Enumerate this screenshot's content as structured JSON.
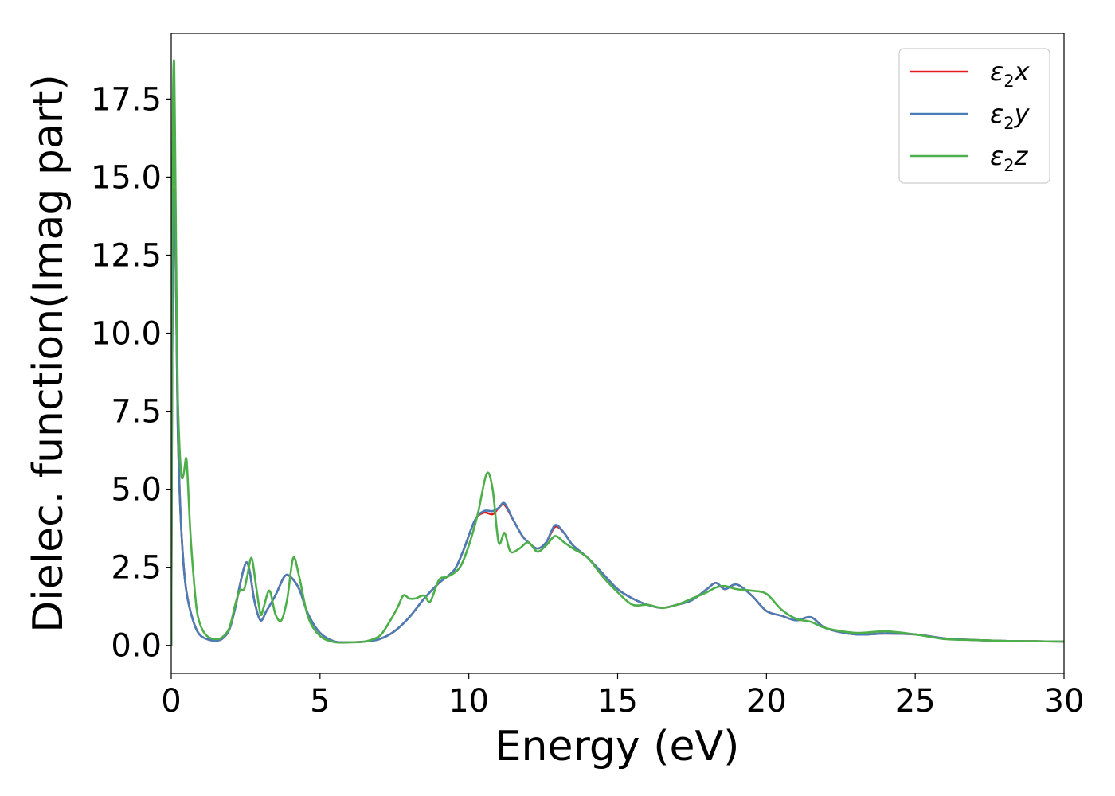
{
  "chart_data": {
    "type": "line",
    "title": "",
    "xlabel": "Energy (eV)",
    "ylabel": "Dielec. function(Imag part)",
    "xlim": [
      0,
      30
    ],
    "ylim": [
      -0.9,
      19.6
    ],
    "xticks": [
      0,
      5,
      10,
      15,
      20,
      25,
      30
    ],
    "xtick_labels": [
      "0",
      "5",
      "10",
      "15",
      "20",
      "25",
      "30"
    ],
    "yticks": [
      0.0,
      2.5,
      5.0,
      7.5,
      10.0,
      12.5,
      15.0,
      17.5
    ],
    "ytick_labels": [
      "0.0",
      "2.5",
      "5.0",
      "7.5",
      "10.0",
      "12.5",
      "15.0",
      "17.5"
    ],
    "grid": false,
    "legend_position": "top-right",
    "series": [
      {
        "name": "ε2x",
        "legend_base": "ε",
        "legend_sub": "2",
        "legend_tail": "x",
        "color": "#e41a1c",
        "x": [
          0.0,
          0.03,
          0.06,
          0.1,
          0.14,
          0.18,
          0.22,
          0.28,
          0.35,
          0.45,
          0.55,
          0.7,
          0.85,
          1.0,
          1.2,
          1.45,
          1.7,
          1.95,
          2.15,
          2.3,
          2.45,
          2.55,
          2.65,
          2.8,
          3.0,
          3.2,
          3.5,
          3.8,
          4.0,
          4.3,
          4.6,
          5.0,
          5.5,
          6.0,
          6.5,
          7.0,
          7.5,
          8.0,
          8.5,
          9.0,
          9.5,
          9.8,
          10.2,
          10.5,
          10.8,
          11.0,
          11.2,
          11.5,
          11.8,
          12.0,
          12.3,
          12.6,
          12.9,
          13.2,
          13.5,
          14.0,
          14.5,
          15.0,
          15.5,
          16.0,
          16.5,
          17.0,
          17.5,
          18.0,
          18.3,
          18.6,
          19.0,
          19.5,
          20.0,
          20.5,
          21.0,
          21.5,
          22.0,
          23.0,
          24.0,
          25.0,
          26.0,
          27.0,
          28.0,
          29.0,
          30.0
        ],
        "values": [
          0.0,
          9.0,
          13.5,
          14.6,
          13.0,
          10.0,
          7.0,
          5.0,
          3.5,
          2.2,
          1.5,
          0.9,
          0.5,
          0.3,
          0.2,
          0.15,
          0.2,
          0.5,
          1.2,
          1.9,
          2.5,
          2.65,
          2.3,
          1.4,
          0.8,
          1.1,
          1.6,
          2.2,
          2.2,
          1.8,
          1.0,
          0.4,
          0.12,
          0.1,
          0.12,
          0.2,
          0.45,
          0.9,
          1.5,
          2.0,
          2.4,
          3.0,
          4.0,
          4.25,
          4.2,
          4.4,
          4.5,
          4.0,
          3.5,
          3.3,
          3.1,
          3.3,
          3.8,
          3.6,
          3.2,
          2.8,
          2.3,
          1.8,
          1.5,
          1.3,
          1.2,
          1.3,
          1.45,
          1.8,
          2.0,
          1.8,
          1.95,
          1.6,
          1.1,
          0.95,
          0.8,
          0.9,
          0.55,
          0.35,
          0.38,
          0.35,
          0.22,
          0.17,
          0.14,
          0.13,
          0.12
        ]
      },
      {
        "name": "ε2y",
        "legend_base": "ε",
        "legend_sub": "2",
        "legend_tail": "y",
        "color": "#4a7db5",
        "x": [
          0.0,
          0.03,
          0.06,
          0.1,
          0.14,
          0.18,
          0.22,
          0.28,
          0.35,
          0.45,
          0.55,
          0.7,
          0.85,
          1.0,
          1.2,
          1.45,
          1.7,
          1.95,
          2.15,
          2.3,
          2.45,
          2.55,
          2.65,
          2.8,
          3.0,
          3.2,
          3.5,
          3.8,
          4.0,
          4.3,
          4.6,
          5.0,
          5.5,
          6.0,
          6.5,
          7.0,
          7.5,
          8.0,
          8.5,
          9.0,
          9.5,
          9.8,
          10.2,
          10.5,
          10.8,
          11.0,
          11.2,
          11.5,
          11.8,
          12.0,
          12.3,
          12.6,
          12.9,
          13.2,
          13.5,
          14.0,
          14.5,
          15.0,
          15.5,
          16.0,
          16.5,
          17.0,
          17.5,
          18.0,
          18.3,
          18.6,
          19.0,
          19.5,
          20.0,
          20.5,
          21.0,
          21.5,
          22.0,
          23.0,
          24.0,
          25.0,
          26.0,
          27.0,
          28.0,
          29.0,
          30.0
        ],
        "values": [
          0.0,
          9.0,
          13.4,
          14.5,
          13.0,
          10.0,
          7.0,
          5.0,
          3.5,
          2.2,
          1.5,
          0.9,
          0.5,
          0.3,
          0.2,
          0.15,
          0.2,
          0.5,
          1.2,
          1.9,
          2.5,
          2.65,
          2.3,
          1.4,
          0.8,
          1.1,
          1.6,
          2.2,
          2.2,
          1.8,
          1.0,
          0.4,
          0.12,
          0.1,
          0.12,
          0.2,
          0.45,
          0.9,
          1.5,
          2.0,
          2.4,
          3.0,
          4.0,
          4.3,
          4.3,
          4.4,
          4.55,
          4.0,
          3.5,
          3.3,
          3.1,
          3.3,
          3.85,
          3.6,
          3.2,
          2.8,
          2.3,
          1.8,
          1.5,
          1.3,
          1.2,
          1.3,
          1.45,
          1.8,
          2.0,
          1.8,
          1.95,
          1.6,
          1.1,
          0.95,
          0.8,
          0.9,
          0.55,
          0.35,
          0.38,
          0.35,
          0.22,
          0.17,
          0.14,
          0.13,
          0.12
        ]
      },
      {
        "name": "ε2z",
        "legend_base": "ε",
        "legend_sub": "2",
        "legend_tail": "z",
        "color": "#4daf4a",
        "x": [
          0.0,
          0.03,
          0.06,
          0.1,
          0.14,
          0.18,
          0.22,
          0.28,
          0.35,
          0.42,
          0.5,
          0.55,
          0.62,
          0.7,
          0.85,
          1.0,
          1.2,
          1.45,
          1.7,
          1.95,
          2.15,
          2.3,
          2.45,
          2.55,
          2.7,
          2.85,
          3.0,
          3.1,
          3.3,
          3.5,
          3.7,
          3.9,
          4.1,
          4.3,
          4.6,
          5.0,
          5.5,
          6.0,
          6.5,
          7.0,
          7.3,
          7.6,
          7.8,
          8.0,
          8.2,
          8.5,
          8.7,
          9.0,
          9.3,
          9.7,
          10.0,
          10.3,
          10.6,
          10.8,
          11.0,
          11.2,
          11.4,
          11.7,
          12.0,
          12.3,
          12.6,
          12.9,
          13.2,
          13.5,
          14.0,
          14.5,
          15.0,
          15.5,
          16.0,
          16.5,
          17.0,
          17.5,
          18.0,
          18.3,
          18.6,
          19.0,
          19.5,
          20.0,
          20.5,
          21.0,
          21.5,
          22.0,
          23.0,
          24.0,
          25.0,
          26.0,
          27.0,
          28.0,
          29.0,
          30.0
        ],
        "values": [
          0.0,
          12.0,
          17.5,
          18.6,
          15.0,
          11.0,
          8.0,
          6.3,
          5.4,
          5.5,
          6.0,
          5.4,
          4.0,
          2.8,
          1.2,
          0.6,
          0.3,
          0.2,
          0.25,
          0.55,
          1.3,
          1.75,
          1.8,
          2.2,
          2.8,
          1.9,
          1.0,
          1.2,
          1.75,
          1.0,
          0.8,
          1.5,
          2.8,
          2.2,
          0.9,
          0.3,
          0.1,
          0.1,
          0.12,
          0.3,
          0.7,
          1.2,
          1.6,
          1.5,
          1.5,
          1.6,
          1.4,
          2.1,
          2.2,
          2.5,
          3.2,
          4.2,
          5.5,
          5.0,
          3.3,
          3.6,
          3.0,
          3.1,
          3.3,
          3.0,
          3.2,
          3.5,
          3.3,
          3.1,
          2.8,
          2.2,
          1.7,
          1.3,
          1.3,
          1.2,
          1.3,
          1.5,
          1.7,
          1.85,
          1.9,
          1.8,
          1.75,
          1.65,
          1.15,
          0.85,
          0.75,
          0.55,
          0.4,
          0.45,
          0.35,
          0.2,
          0.17,
          0.14,
          0.13,
          0.12
        ]
      }
    ]
  }
}
